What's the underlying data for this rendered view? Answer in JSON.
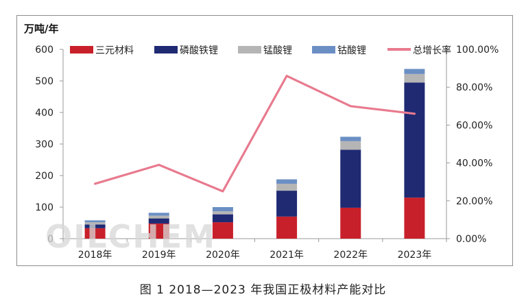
{
  "watermark": "OILCHEM",
  "caption": "图 1  2018—2023 年我国正极材料产能对比",
  "chart_data": {
    "type": "bar",
    "stacked": true,
    "y_unit_label": "万吨/年",
    "categories": [
      "2018年",
      "2019年",
      "2020年",
      "2021年",
      "2022年",
      "2023年"
    ],
    "series": [
      {
        "name": "三元材料",
        "color": "#c8202a",
        "values": [
          33,
          48,
          52,
          70,
          98,
          130
        ]
      },
      {
        "name": "磷酸铁锂",
        "color": "#1f2a73",
        "values": [
          12,
          16,
          25,
          82,
          184,
          365
        ]
      },
      {
        "name": "锰酸锂",
        "color": "#b5b5b5",
        "values": [
          7,
          9,
          10,
          22,
          27,
          27
        ]
      },
      {
        "name": "钴酸锂",
        "color": "#6b8fc4",
        "values": [
          6,
          9,
          13,
          14,
          14,
          16
        ]
      }
    ],
    "line_series": {
      "name": "总增长率",
      "color": "#e87a8e",
      "axis": "right",
      "values": [
        0.29,
        0.39,
        0.25,
        0.86,
        0.7,
        0.66
      ]
    },
    "ylim": [
      0,
      600
    ],
    "yticks": [
      0,
      100,
      200,
      300,
      400,
      500,
      600
    ],
    "y2lim": [
      0,
      1.0
    ],
    "y2ticks": [
      "0.00%",
      "20.00%",
      "40.00%",
      "60.00%",
      "80.00%",
      "100.00%"
    ],
    "legend_position": "top"
  }
}
